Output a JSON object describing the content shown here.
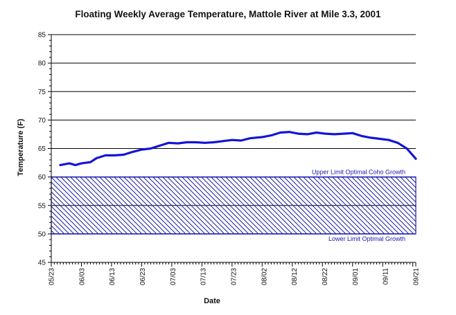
{
  "chart_data": {
    "type": "line",
    "title": "Floating Weekly Average Temperature, Mattole River at Mile 3.3, 2001",
    "xlabel": "Date",
    "ylabel": "Temperature (F)",
    "ylim": [
      45,
      85
    ],
    "yticks": [
      "45",
      "50",
      "55",
      "60",
      "65",
      "70",
      "75",
      "80",
      "85"
    ],
    "xlim": [
      "2001-05-23",
      "2001-09-21"
    ],
    "xticks": [
      "05/23",
      "06/03",
      "06/13",
      "06/23",
      "07/03",
      "07/13",
      "07/23",
      "08/02",
      "08/12",
      "08/22",
      "09/01",
      "09/11",
      "09/21"
    ],
    "grid": "horizontal",
    "line_color": "#1414d8",
    "band_color": "#1a1aaa",
    "optimal_band": {
      "upper": 60,
      "lower": 50,
      "upper_label": "Upper Limit Optimal Coho Growth",
      "lower_label": "Lower Limit Optimal Growth"
    },
    "series": [
      {
        "x": [
          "2001-05-26",
          "2001-05-29",
          "2001-05-31",
          "2001-06-02",
          "2001-06-05",
          "2001-06-07",
          "2001-06-10",
          "2001-06-13",
          "2001-06-16",
          "2001-06-19",
          "2001-06-22",
          "2001-06-25",
          "2001-06-28",
          "2001-07-01",
          "2001-07-04",
          "2001-07-07",
          "2001-07-10",
          "2001-07-13",
          "2001-07-16",
          "2001-07-19",
          "2001-07-22",
          "2001-07-25",
          "2001-07-28",
          "2001-08-01",
          "2001-08-04",
          "2001-08-07",
          "2001-08-10",
          "2001-08-13",
          "2001-08-16",
          "2001-08-19",
          "2001-08-22",
          "2001-08-25",
          "2001-08-28",
          "2001-08-31",
          "2001-09-03",
          "2001-09-06",
          "2001-09-09",
          "2001-09-12",
          "2001-09-15",
          "2001-09-18",
          "2001-09-21"
        ],
        "values": [
          62.1,
          62.4,
          62.1,
          62.4,
          62.6,
          63.3,
          63.8,
          63.8,
          63.9,
          64.4,
          64.8,
          65.0,
          65.5,
          66.0,
          65.9,
          66.1,
          66.1,
          66.0,
          66.1,
          66.3,
          66.5,
          66.4,
          66.8,
          67.0,
          67.3,
          67.8,
          67.9,
          67.6,
          67.5,
          67.8,
          67.6,
          67.5,
          67.6,
          67.7,
          67.2,
          66.9,
          66.7,
          66.5,
          66.0,
          65.0,
          63.2
        ]
      }
    ]
  }
}
